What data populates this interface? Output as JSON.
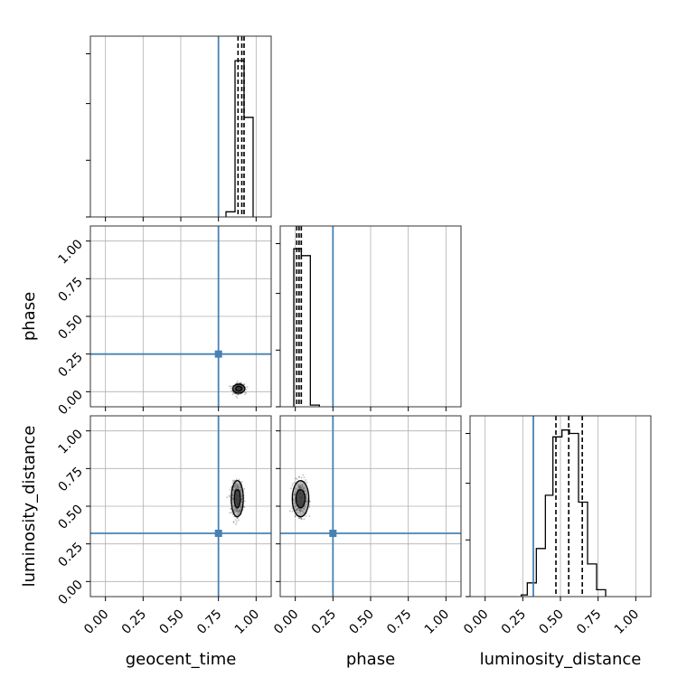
{
  "chart_data": {
    "type": "corner",
    "parameters": [
      "geocent_time",
      "phase",
      "luminosity_distance"
    ],
    "axis_range": [
      -0.1,
      1.1
    ],
    "tick_labels": [
      "0.00",
      "0.25",
      "0.50",
      "0.75",
      "1.00"
    ],
    "grid": true,
    "colors": {
      "truth": "#4682b4",
      "hist": "#000000",
      "grid": "#b0b0b0"
    },
    "truths": {
      "geocent_time": 0.75,
      "phase": 0.25,
      "luminosity_distance": 0.32
    },
    "marginals": [
      {
        "param": "geocent_time",
        "quantiles": [
          0.88,
          0.905,
          0.92
        ],
        "bins": [
          {
            "from": 0.8,
            "to": 0.86,
            "height": 0.03
          },
          {
            "from": 0.86,
            "to": 0.92,
            "height": 0.91
          },
          {
            "from": 0.92,
            "to": 0.98,
            "height": 0.58
          }
        ]
      },
      {
        "param": "phase",
        "quantiles": [
          0.01,
          0.025,
          0.04
        ],
        "bins": [
          {
            "from": -0.01,
            "to": 0.04,
            "height": 0.92
          },
          {
            "from": 0.04,
            "to": 0.1,
            "height": 0.88
          },
          {
            "from": 0.1,
            "to": 0.16,
            "height": 0.01
          }
        ]
      },
      {
        "param": "luminosity_distance",
        "quantiles": [
          0.47,
          0.555,
          0.645
        ],
        "bins": [
          {
            "from": 0.24,
            "to": 0.28,
            "height": 0.01
          },
          {
            "from": 0.28,
            "to": 0.34,
            "height": 0.08
          },
          {
            "from": 0.34,
            "to": 0.4,
            "height": 0.28
          },
          {
            "from": 0.4,
            "to": 0.45,
            "height": 0.59
          },
          {
            "from": 0.45,
            "to": 0.51,
            "height": 0.93
          },
          {
            "from": 0.51,
            "to": 0.56,
            "height": 0.97
          },
          {
            "from": 0.56,
            "to": 0.62,
            "height": 0.95
          },
          {
            "from": 0.62,
            "to": 0.68,
            "height": 0.55
          },
          {
            "from": 0.68,
            "to": 0.74,
            "height": 0.19
          },
          {
            "from": 0.74,
            "to": 0.8,
            "height": 0.04
          }
        ]
      }
    ],
    "joint": [
      {
        "x": "geocent_time",
        "y": "phase",
        "center": [
          0.885,
          0.02
        ],
        "spread": [
          0.03,
          0.025
        ],
        "contours": [
          [
            0.02,
            0.015
          ],
          [
            0.04,
            0.03
          ]
        ]
      },
      {
        "x": "geocent_time",
        "y": "luminosity_distance",
        "center": [
          0.875,
          0.55
        ],
        "spread": [
          0.03,
          0.09
        ],
        "contours": [
          [
            0.02,
            0.06
          ],
          [
            0.04,
            0.12
          ]
        ]
      },
      {
        "x": "phase",
        "y": "luminosity_distance",
        "center": [
          0.035,
          0.55
        ],
        "spread": [
          0.035,
          0.09
        ],
        "contours": [
          [
            0.03,
            0.06
          ],
          [
            0.055,
            0.12
          ]
        ]
      }
    ]
  }
}
